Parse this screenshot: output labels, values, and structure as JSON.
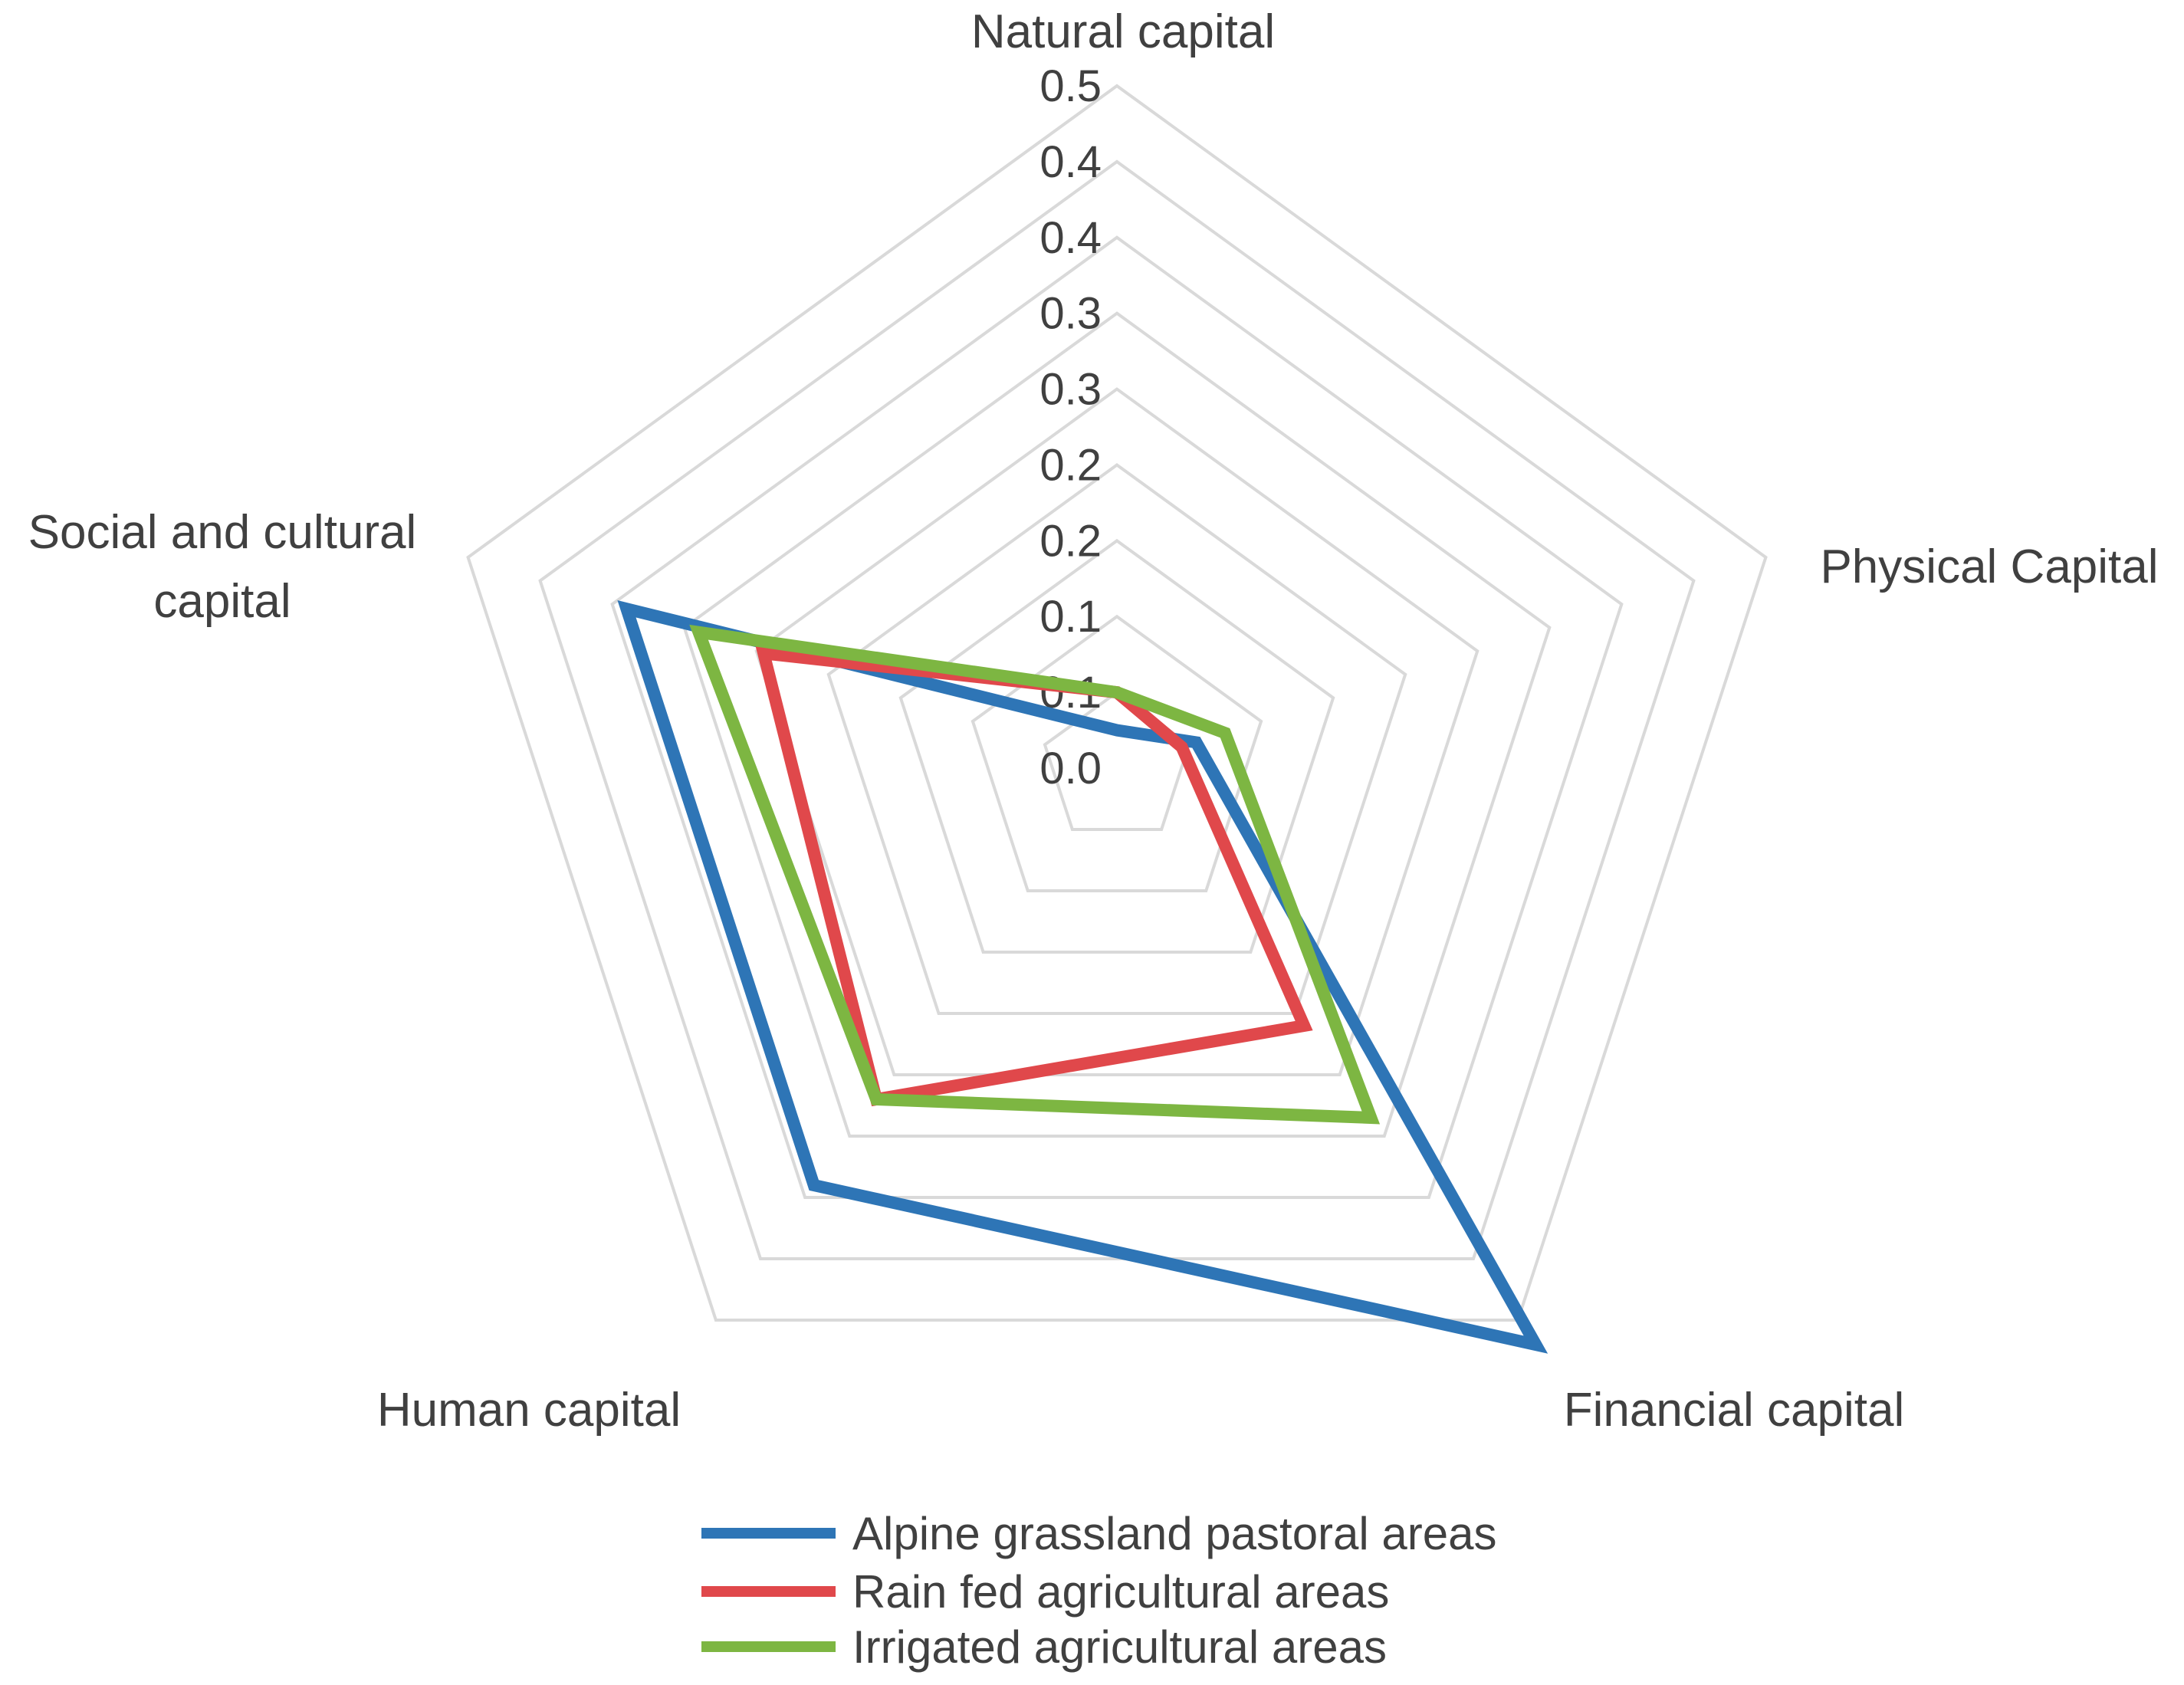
{
  "chart_data": {
    "type": "radar",
    "axes": [
      "Natural capital",
      "Physical Capital",
      "Financial capital",
      "Human capital",
      "Social and cultural capital"
    ],
    "axis_label_lines": [
      [
        "Natural capital"
      ],
      [
        "Physical Capital"
      ],
      [
        "Financial capital"
      ],
      [
        "Human capital"
      ],
      [
        "Social and cultural",
        "capital"
      ]
    ],
    "tick_labels": [
      "0.0",
      "0.1",
      "0.1",
      "0.2",
      "0.2",
      "0.3",
      "0.3",
      "0.4",
      "0.4",
      "0.5"
    ],
    "rlim": [
      0,
      0.45
    ],
    "grid_rings": 9,
    "series": [
      {
        "name": "Alpine grassland pastoral areas",
        "color": "#2e75b6",
        "values": [
          0.025,
          0.055,
          0.47,
          0.34,
          0.34
        ]
      },
      {
        "name": "Rain fed agricultural areas",
        "color": "#e0484b",
        "values": [
          0.05,
          0.045,
          0.21,
          0.27,
          0.245
        ]
      },
      {
        "name": "Irrigated agricultural areas",
        "color": "#7db642",
        "values": [
          0.05,
          0.075,
          0.285,
          0.27,
          0.29
        ]
      }
    ],
    "legend_position": "bottom"
  }
}
